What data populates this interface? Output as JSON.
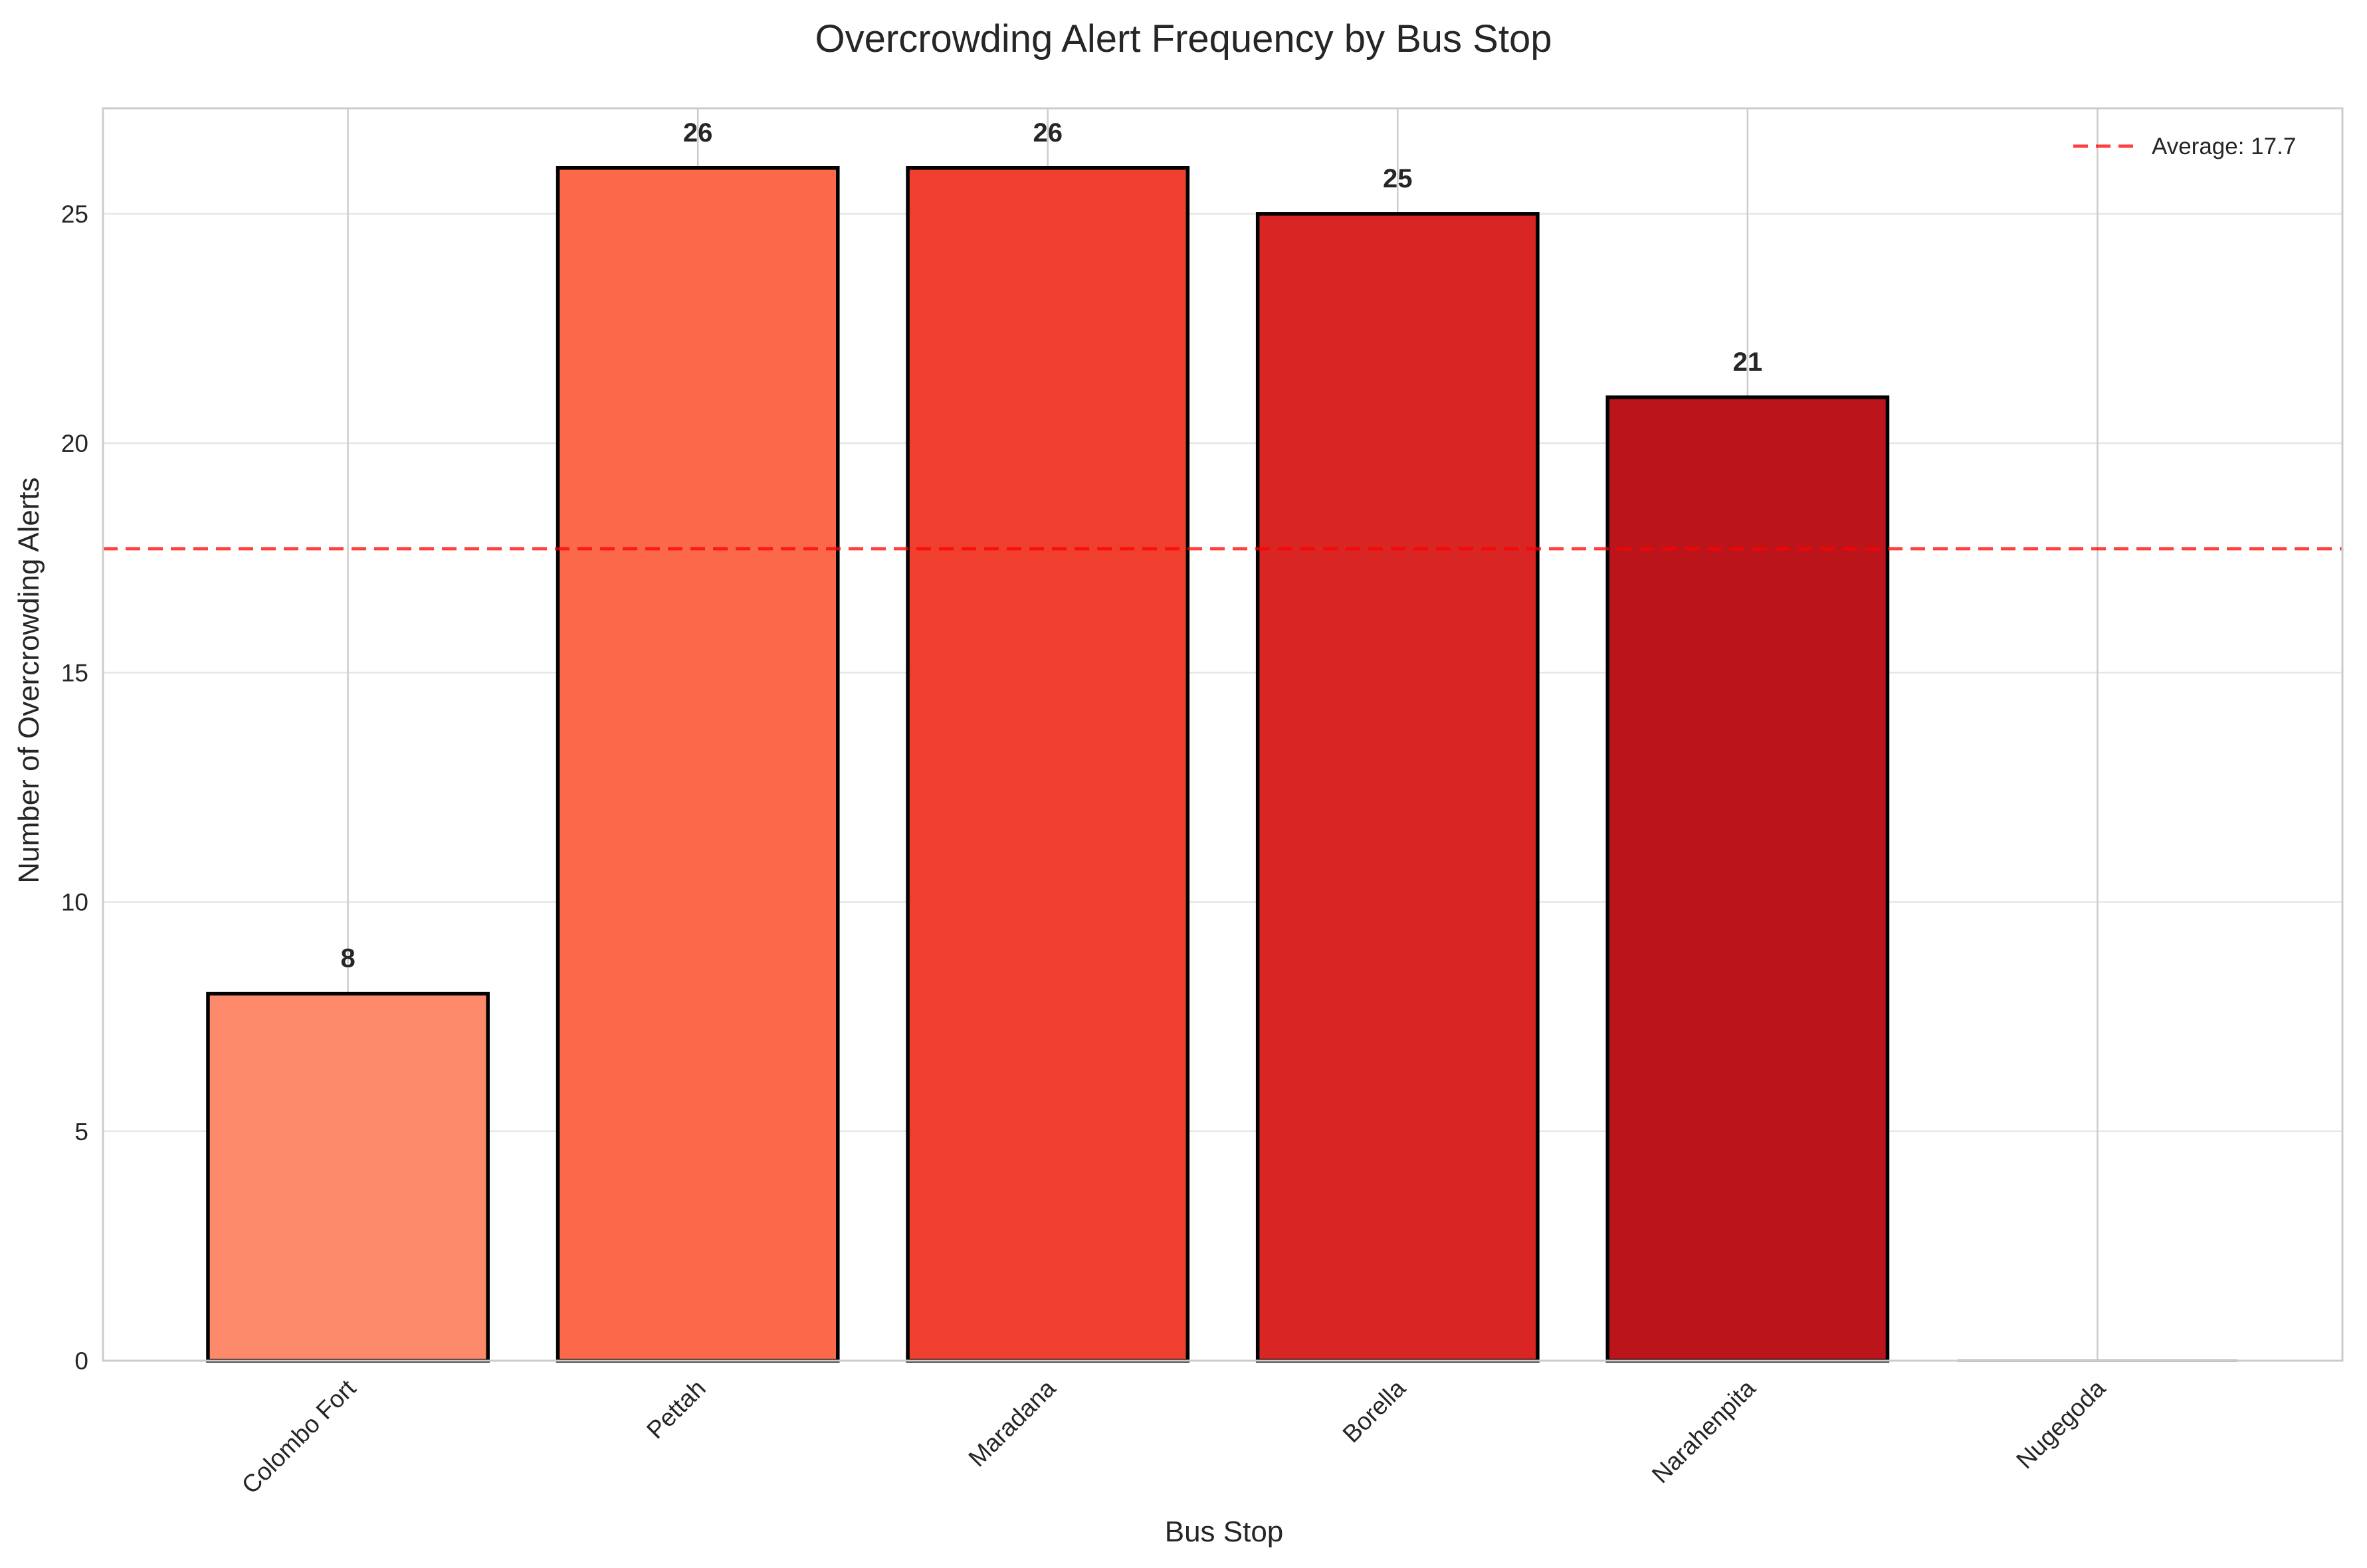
{
  "chart_data": {
    "type": "bar",
    "title": "Overcrowding Alert Frequency by Bus Stop",
    "xlabel": "Bus Stop",
    "ylabel": "Number of Overcrowding Alerts",
    "categories": [
      "Colombo Fort",
      "Pettah",
      "Maradana",
      "Borella",
      "Narahenpita",
      "Nugegoda"
    ],
    "values": [
      8,
      26,
      26,
      25,
      21,
      0
    ],
    "data_labels": [
      "8",
      "26",
      "26",
      "25",
      "21",
      ""
    ],
    "bar_colors": [
      "#fc8a6a",
      "#fb694a",
      "#f03f2e",
      "#d92523",
      "#bb141a",
      "#b0b0b0"
    ],
    "ylim": [
      0,
      27.3
    ],
    "yticks": [
      0,
      5,
      10,
      15,
      20,
      25
    ],
    "grid": true,
    "average": {
      "value": 17.7,
      "label": "Average: 17.7",
      "color": "#ff0000"
    },
    "legend_position": "top-right"
  }
}
